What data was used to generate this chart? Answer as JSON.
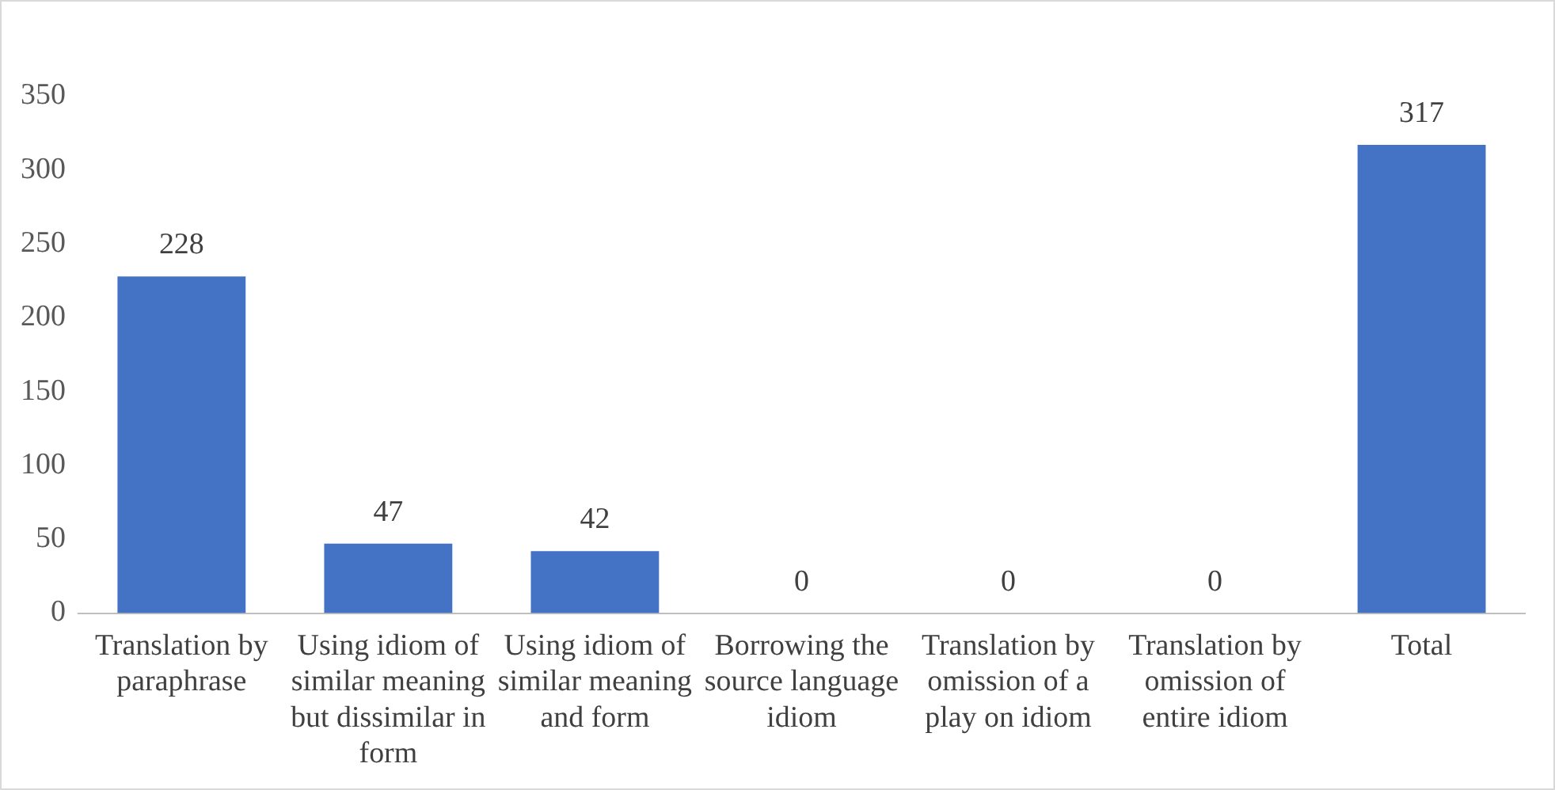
{
  "chart_data": {
    "type": "bar",
    "categories": [
      "Translation by paraphrase",
      "Using idiom of similar meaning but dissimilar in form",
      "Using idiom of similar meaning and form",
      "Borrowing the source language idiom",
      "Translation by omission of a play on idiom",
      "Translation by omission of entire idiom",
      "Total"
    ],
    "values": [
      228,
      47,
      42,
      0,
      0,
      0,
      317
    ],
    "color": "#4472c4",
    "ylim": [
      0,
      350
    ],
    "yticks": [
      0,
      50,
      100,
      150,
      200,
      250,
      300,
      350
    ],
    "grid": false,
    "data_labels": true
  }
}
